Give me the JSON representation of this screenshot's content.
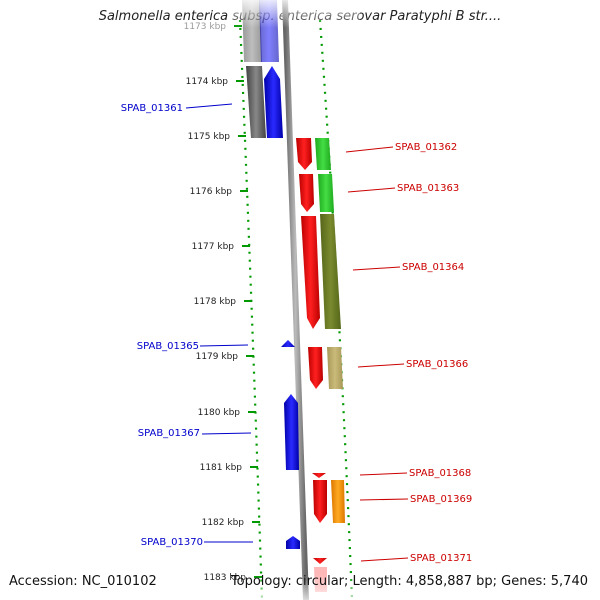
{
  "title": "Salmonella enterica subsp. enterica serovar Paratyphi B str....",
  "accession": "Accession: NC_010102",
  "summary": "Topology: circular; Length: 4,858,887 bp; Genes: 5,740",
  "scale": {
    "unit": "kbp",
    "ticks": [
      {
        "value": 1173,
        "label": "1173 kbp"
      },
      {
        "value": 1174,
        "label": "1174 kbp"
      },
      {
        "value": 1175,
        "label": "1175 kbp"
      },
      {
        "value": 1176,
        "label": "1176 kbp"
      },
      {
        "value": 1177,
        "label": "1177 kbp"
      },
      {
        "value": 1178,
        "label": "1178 kbp"
      },
      {
        "value": 1179,
        "label": "1179 kbp"
      },
      {
        "value": 1180,
        "label": "1180 kbp"
      },
      {
        "value": 1181,
        "label": "1181 kbp"
      },
      {
        "value": 1182,
        "label": "1182 kbp"
      },
      {
        "value": 1183,
        "label": "1183 kbp"
      }
    ]
  },
  "genes": [
    {
      "label": "SPAB_01361",
      "strand": "reverse",
      "color": "#0000cc"
    },
    {
      "label": "SPAB_01362",
      "strand": "forward",
      "color": "#cc0000"
    },
    {
      "label": "SPAB_01363",
      "strand": "forward",
      "color": "#cc0000"
    },
    {
      "label": "SPAB_01364",
      "strand": "forward",
      "color": "#cc0000"
    },
    {
      "label": "SPAB_01365",
      "strand": "reverse",
      "color": "#0000cc"
    },
    {
      "label": "SPAB_01366",
      "strand": "forward",
      "color": "#cc0000"
    },
    {
      "label": "SPAB_01367",
      "strand": "reverse",
      "color": "#0000cc"
    },
    {
      "label": "SPAB_01368",
      "strand": "forward",
      "color": "#cc0000"
    },
    {
      "label": "SPAB_01369",
      "strand": "forward",
      "color": "#cc0000"
    },
    {
      "label": "SPAB_01370",
      "strand": "reverse",
      "color": "#0000cc"
    },
    {
      "label": "SPAB_01371",
      "strand": "forward",
      "color": "#cc0000"
    }
  ],
  "colors": {
    "forward_cds": "#ff0000",
    "reverse_cds": "#0000ff",
    "backbone": "#888888",
    "tick": "#009900",
    "cog_green": "#33cc33",
    "cog_olive": "#667722",
    "cog_khaki": "#bbaa66",
    "cog_orange": "#ff9900",
    "cog_gray": "#666666"
  }
}
